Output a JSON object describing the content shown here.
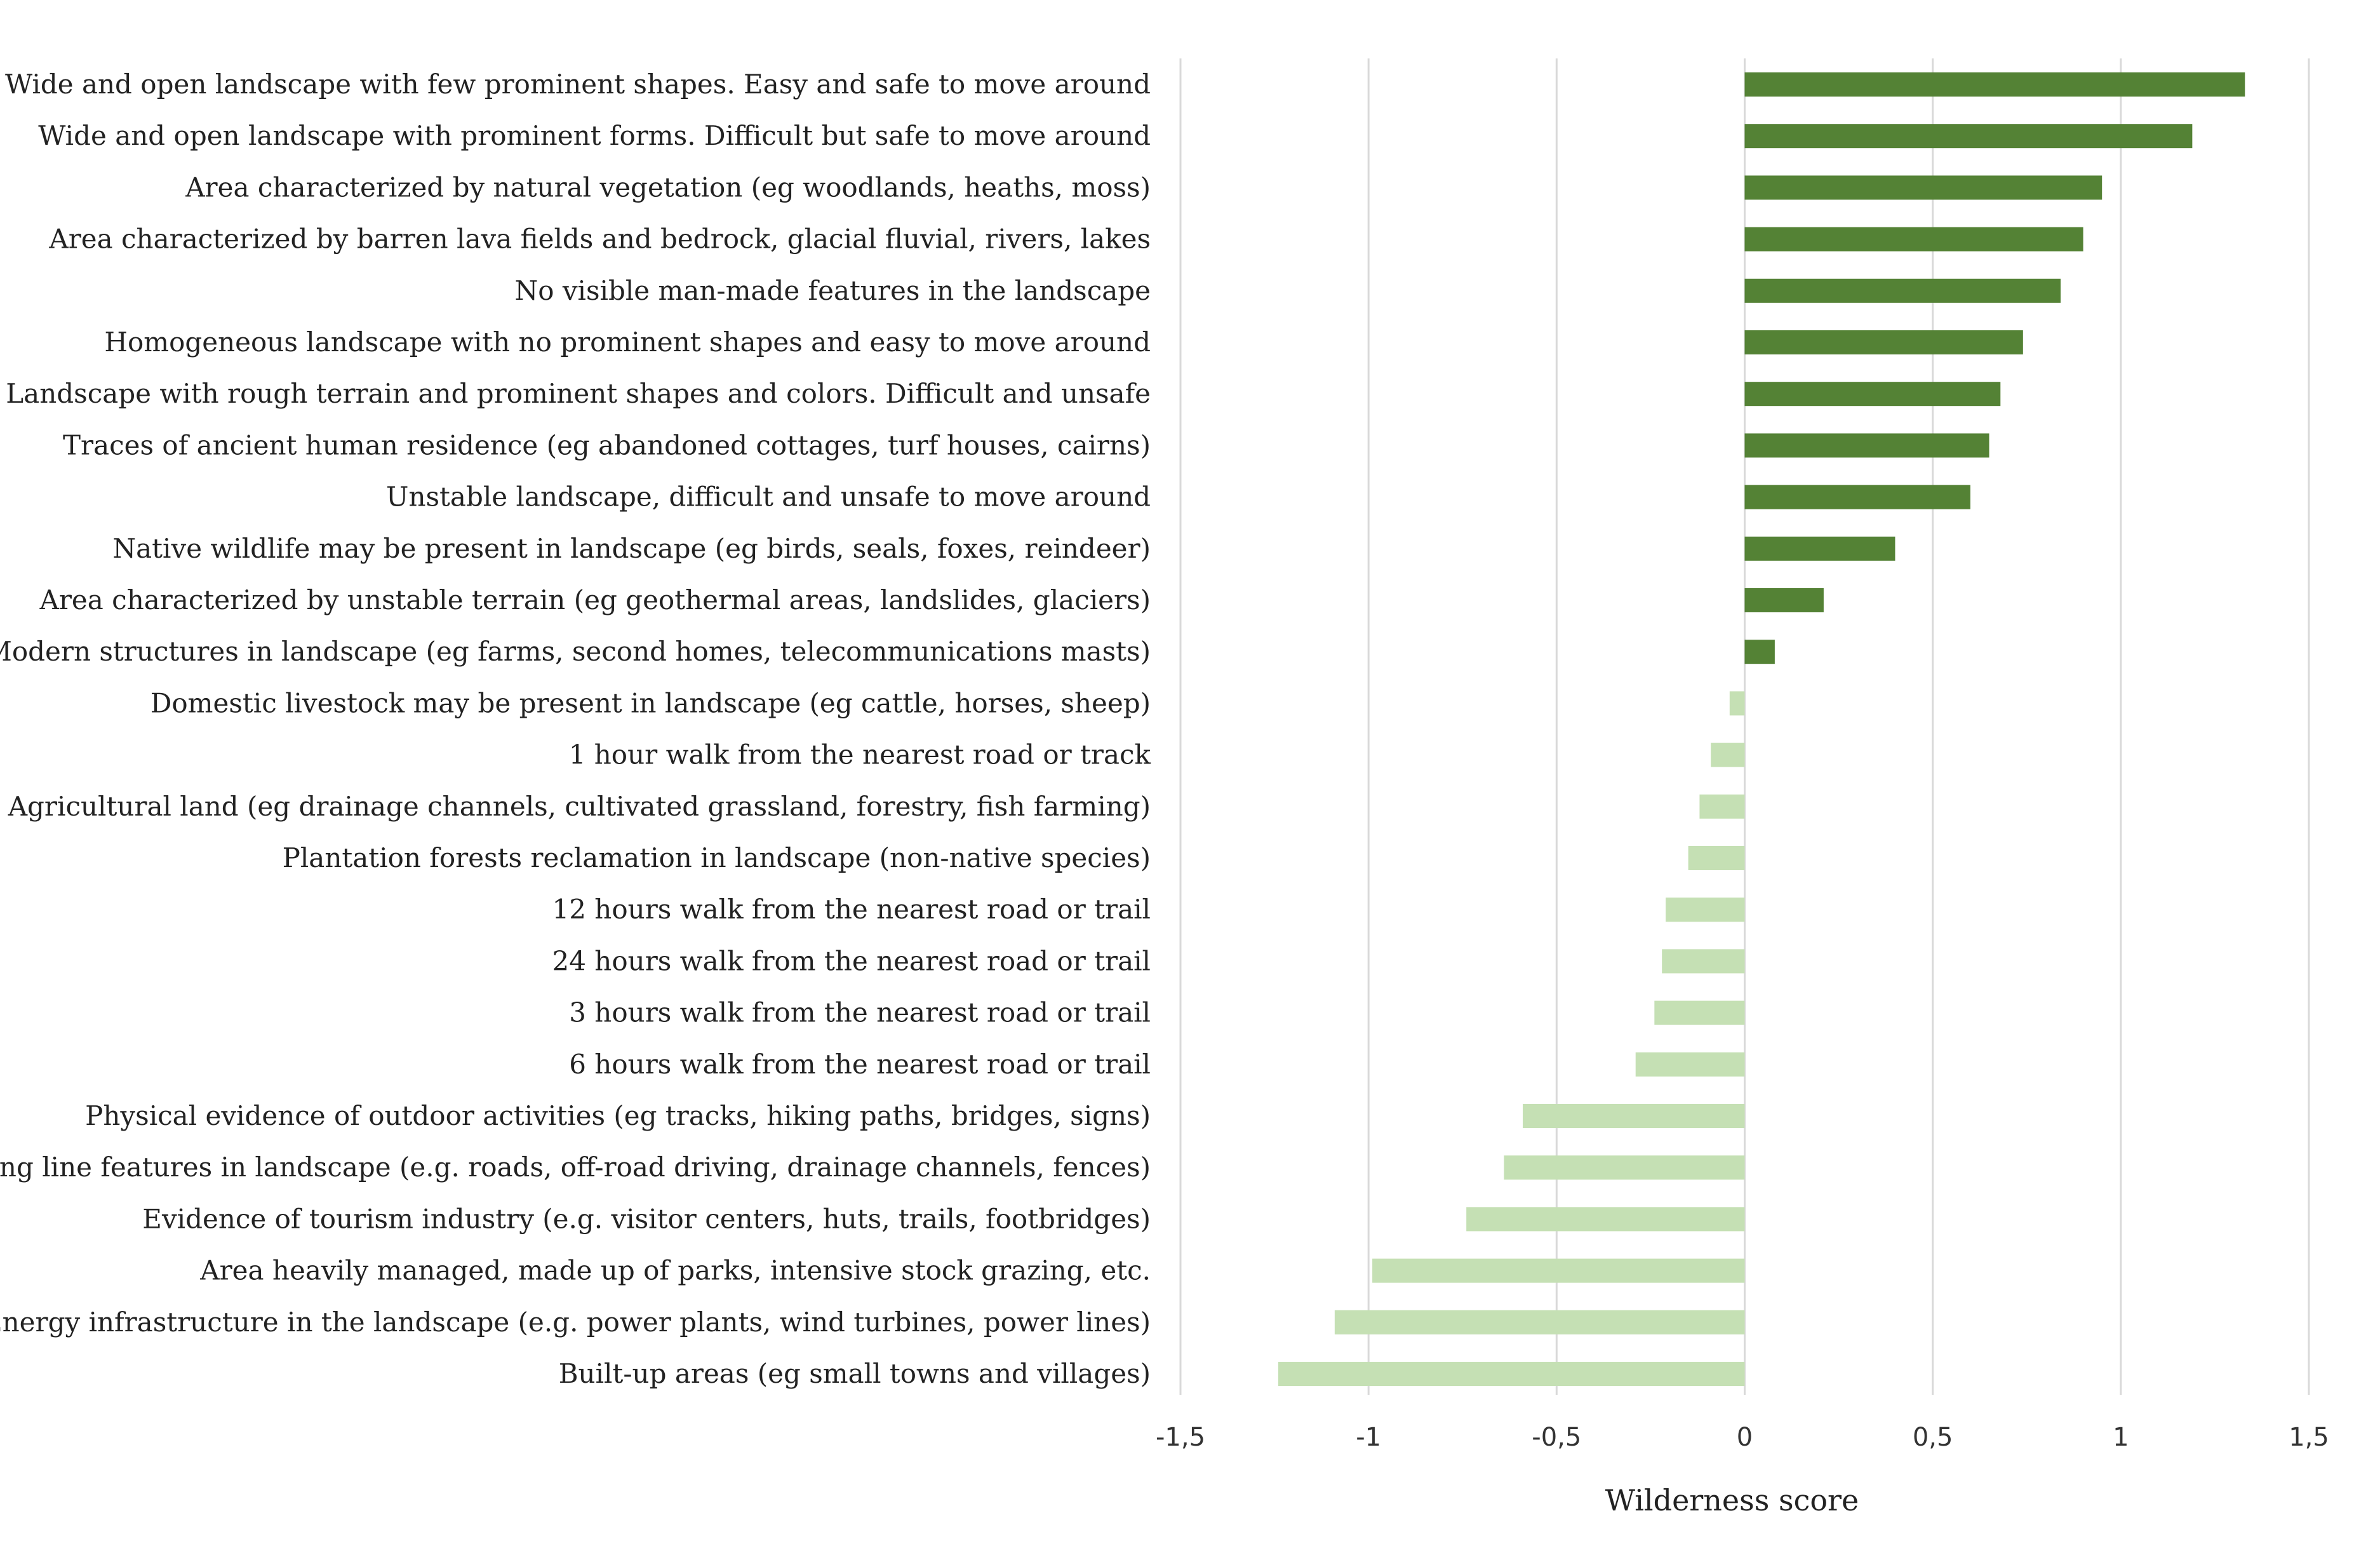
{
  "chart_data": {
    "type": "bar",
    "orientation": "horizontal",
    "title": "",
    "xlabel": "Wilderness score",
    "ylabel": "",
    "xlim": [
      -1.5,
      1.5
    ],
    "grid": true,
    "x_ticks": [
      -1.5,
      -1,
      -0.5,
      0,
      0.5,
      1,
      1.5
    ],
    "x_tick_labels": [
      "-1,5",
      "-1",
      "-0,5",
      "0",
      "0,5",
      "1",
      "1,5"
    ],
    "colors": {
      "positive": "#548235",
      "negative": "#c5e0b4"
    },
    "categories": [
      "Wide and open landscape with few prominent shapes. Easy and safe to move around",
      "Wide and open landscape with prominent forms. Difficult but safe to move around",
      "Area characterized by natural vegetation (eg woodlands, heaths, moss)",
      "Area characterized by barren lava fields and bedrock, glacial fluvial, rivers, lakes",
      "No visible man-made features in the landscape",
      "Homogeneous landscape with no prominent shapes and easy to move around",
      "Landscape with rough terrain and prominent shapes and colors. Difficult and unsafe",
      "Traces of ancient human residence (eg abandoned cottages, turf houses, cairns)",
      "Unstable landscape, difficult and unsafe to move around",
      "Native wildlife may be present in landscape (eg birds, seals, foxes, reindeer)",
      "Area characterized by unstable terrain (eg geothermal areas, landslides, glaciers)",
      "Modern structures in landscape (eg farms, second homes, telecommunications masts)",
      "Domestic livestock may be present in landscape (eg cattle, horses, sheep)",
      "1 hour walk from the nearest road or track",
      "Agricultural land (eg drainage channels, cultivated grassland, forestry, fish farming)",
      "Plantation forests  reclamation in landscape (non-native species)",
      "12 hours walk from the nearest road or trail",
      "24 hours walk from the nearest road or trail",
      "3 hours walk from the nearest road or trail",
      "6 hours walk from the nearest road or trail",
      "Physical evidence of outdoor activities (eg tracks, hiking paths, bridges, signs)",
      "Long line features in landscape (e.g. roads, off-road driving, drainage channels, fences)",
      "Evidence of tourism industry (e.g. visitor centers, huts, trails, footbridges)",
      "Area heavily managed, made up of parks, intensive stock grazing, etc.",
      "Energy infrastructure in the landscape (e.g. power plants, wind turbines, power lines)",
      "Built-up areas (eg small towns and villages)"
    ],
    "values": [
      1.33,
      1.19,
      0.95,
      0.9,
      0.84,
      0.74,
      0.68,
      0.65,
      0.6,
      0.4,
      0.21,
      0.08,
      -0.04,
      -0.09,
      -0.12,
      -0.15,
      -0.21,
      -0.22,
      -0.24,
      -0.29,
      -0.59,
      -0.64,
      -0.74,
      -0.99,
      -1.09,
      -1.24
    ]
  }
}
